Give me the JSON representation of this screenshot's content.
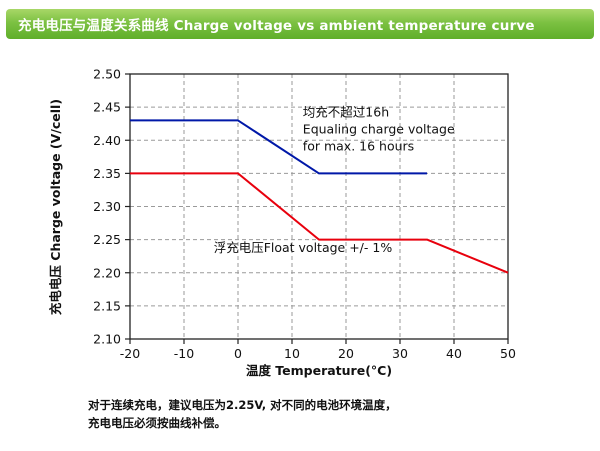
{
  "header": {
    "title": "充电电压与温度关系曲线 Charge voltage vs ambient temperature curve",
    "bg_color": "#7cc142",
    "text_color": "#ffffff"
  },
  "chart_data": {
    "type": "line",
    "title": "充电电压与温度关系曲线 Charge voltage vs ambient temperature curve",
    "xlabel": "温度 Temperature(°C)",
    "ylabel": "充电电压 Charge voltage (V/cell)",
    "xlim": [
      -20,
      50
    ],
    "ylim": [
      2.1,
      2.5
    ],
    "xticks": [
      -20,
      -10,
      0,
      10,
      20,
      30,
      40,
      50
    ],
    "yticks": [
      2.5,
      2.45,
      2.4,
      2.35,
      2.3,
      2.25,
      2.2,
      2.15,
      2.1
    ],
    "grid": true,
    "grid_color": "#9a9a9a",
    "border_color": "#222222",
    "legend_position": "none",
    "series": [
      {
        "name": "equalizing-charge-voltage",
        "label": "Equaling charge voltage",
        "color": "#0018a8",
        "x": [
          -20,
          0,
          15,
          35
        ],
        "y": [
          2.43,
          2.43,
          2.35,
          2.35
        ]
      },
      {
        "name": "float-voltage",
        "label": "Float voltage",
        "color": "#e8000d",
        "x": [
          -20,
          0,
          15,
          35,
          50
        ],
        "y": [
          2.35,
          2.35,
          2.25,
          2.25,
          2.2
        ]
      }
    ],
    "annotations": [
      {
        "name": "equalizing-note",
        "x": 12,
        "y": 2.436,
        "lines": [
          "均充不超过16h",
          "Equaling charge voltage",
          "for max. 16 hours"
        ]
      },
      {
        "name": "float-note",
        "x": -4.5,
        "y": 2.231,
        "lines": [
          "浮充电压Float voltage +/- 1%"
        ]
      }
    ]
  },
  "footer": {
    "line1": "对于连续充电，建议电压为2.25V, 对不同的电池环境温度，",
    "line2": "充电电压必须按曲线补偿。"
  }
}
